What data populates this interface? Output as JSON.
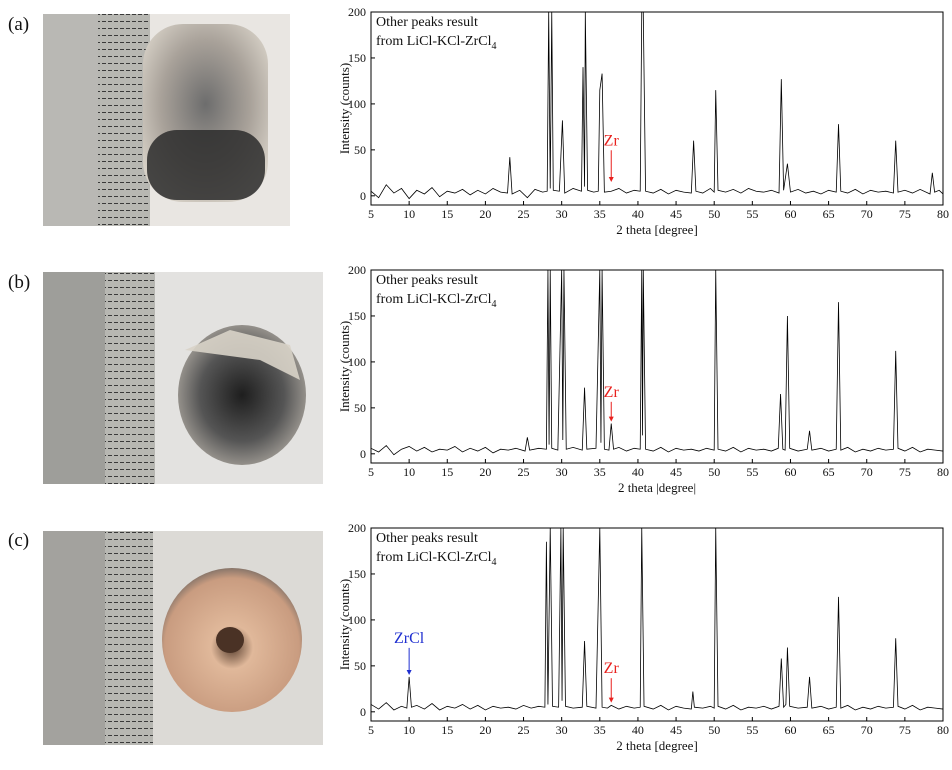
{
  "chart_data": [
    {
      "type": "line",
      "panel_label": "(a)",
      "x_label": "2 theta [degree]",
      "y_label": "Intensity (counts)",
      "note": [
        {
          "text": "Other peaks result"
        },
        {
          "text": "from LiCl-KCl-ZrCl",
          "subscript": "4"
        }
      ],
      "xlim": [
        5,
        80
      ],
      "xticks": [
        5,
        10,
        15,
        20,
        25,
        30,
        35,
        40,
        45,
        50,
        55,
        60,
        65,
        70,
        75,
        80
      ],
      "ylim": [
        -10,
        200
      ],
      "yticks": [
        0,
        50,
        100,
        150,
        200
      ],
      "series": [
        {
          "color": "#000000",
          "x": [
            5,
            6,
            7,
            8,
            9,
            10,
            11,
            12,
            13,
            14,
            15,
            16,
            17,
            18,
            19,
            20,
            21,
            22,
            22.9,
            23.2,
            23.5,
            24.5,
            25.5,
            26.5,
            27.5,
            28.1,
            28.3,
            28.5,
            28.7,
            28.9,
            29.7,
            30.1,
            30.4,
            31.5,
            32.6,
            32.8,
            33.0,
            33.1,
            33.4,
            34.2,
            34.8,
            35.0,
            35.3,
            35.6,
            36.5,
            37.5,
            38.5,
            39.5,
            40.3,
            40.5,
            40.7,
            41.0,
            42,
            43,
            44,
            45,
            46,
            47.0,
            47.3,
            47.6,
            48.5,
            49.5,
            50.0,
            50.2,
            50.5,
            51.5,
            52.5,
            53.5,
            54.5,
            55.5,
            56.5,
            57.5,
            58.5,
            58.8,
            59.1,
            59.6,
            60.0,
            61,
            62,
            63,
            64,
            65,
            66.0,
            66.3,
            66.6,
            67.5,
            68.5,
            69.5,
            70.5,
            71.5,
            72.5,
            73.5,
            73.8,
            74.1,
            75,
            76,
            77,
            78.3,
            78.6,
            78.9,
            79.5,
            80
          ],
          "values": [
            5,
            -2,
            12,
            3,
            8,
            -3,
            6,
            2,
            9,
            -1,
            5,
            3,
            7,
            1,
            6,
            2,
            8,
            4,
            3,
            42,
            2,
            6,
            -2,
            7,
            4,
            5,
            200,
            8,
            200,
            6,
            5,
            82,
            3,
            8,
            5,
            140,
            10,
            200,
            6,
            4,
            5,
            115,
            133,
            4,
            5,
            8,
            3,
            6,
            5,
            200,
            200,
            5,
            3,
            7,
            2,
            6,
            4,
            3,
            60,
            5,
            3,
            8,
            4,
            115,
            6,
            4,
            7,
            3,
            8,
            5,
            4,
            6,
            3,
            127,
            6,
            35,
            4,
            7,
            3,
            5,
            2,
            6,
            4,
            78,
            5,
            3,
            7,
            2,
            6,
            4,
            5,
            3,
            60,
            4,
            6,
            3,
            7,
            2,
            25,
            4,
            6,
            2
          ]
        }
      ],
      "annotations": [
        {
          "text": "Zr",
          "x": 36.5,
          "y": 55,
          "arrow_to": 15,
          "color": "#e8201d"
        }
      ]
    },
    {
      "type": "line",
      "panel_label": "(b)",
      "x_label": "2 theta |degree|",
      "y_label": "Intensity (counts)",
      "note": [
        {
          "text": "Other peaks result"
        },
        {
          "text": "from LiCl-KCl-ZrCl",
          "subscript": "4"
        }
      ],
      "xlim": [
        5,
        80
      ],
      "xticks": [
        5,
        10,
        15,
        20,
        25,
        30,
        35,
        40,
        45,
        50,
        55,
        60,
        65,
        70,
        75,
        80
      ],
      "ylim": [
        -10,
        200
      ],
      "yticks": [
        0,
        50,
        100,
        150,
        200
      ],
      "series": [
        {
          "color": "#000000",
          "x": [
            5,
            6,
            7,
            8,
            9,
            10,
            11,
            12,
            13,
            14,
            15,
            16,
            17,
            18,
            19,
            20,
            21,
            22,
            23,
            24,
            25.2,
            25.5,
            25.8,
            27,
            28.0,
            28.2,
            28.35,
            28.5,
            28.7,
            29.5,
            30.0,
            30.15,
            30.3,
            30.6,
            31.5,
            32.7,
            33.0,
            33.3,
            34.5,
            35.0,
            35.15,
            35.3,
            35.6,
            36.2,
            36.5,
            36.8,
            37.5,
            38.5,
            39.5,
            40.3,
            40.5,
            40.6,
            40.7,
            41.0,
            42,
            43,
            44,
            45,
            46,
            47,
            48,
            49,
            50.0,
            50.2,
            50.5,
            51.5,
            52.5,
            53.5,
            54.5,
            55.5,
            56.5,
            57.5,
            58.4,
            58.7,
            59.0,
            59.3,
            59.6,
            59.9,
            61,
            62.2,
            62.5,
            62.8,
            64,
            65,
            66.0,
            66.3,
            66.6,
            67.5,
            68.5,
            69.5,
            70.5,
            71.5,
            72.5,
            73.5,
            73.8,
            74.1,
            75,
            76,
            77,
            78,
            79,
            80
          ],
          "values": [
            6,
            2,
            9,
            -1,
            5,
            8,
            3,
            7,
            2,
            5,
            4,
            8,
            2,
            6,
            3,
            7,
            1,
            5,
            4,
            6,
            3,
            18,
            4,
            6,
            5,
            200,
            10,
            200,
            6,
            4,
            200,
            15,
            200,
            5,
            7,
            4,
            72,
            5,
            6,
            200,
            12,
            200,
            5,
            4,
            33,
            5,
            7,
            3,
            6,
            5,
            200,
            20,
            200,
            5,
            3,
            7,
            2,
            6,
            4,
            5,
            3,
            6,
            4,
            200,
            5,
            3,
            7,
            2,
            6,
            4,
            5,
            3,
            6,
            65,
            5,
            4,
            150,
            6,
            3,
            5,
            25,
            4,
            6,
            3,
            5,
            165,
            4,
            7,
            2,
            5,
            3,
            6,
            4,
            5,
            112,
            6,
            3,
            7,
            2,
            5,
            4,
            3
          ]
        }
      ],
      "annotations": [
        {
          "text": "Zr",
          "x": 36.5,
          "y": 62,
          "arrow_to": 35,
          "color": "#e8201d"
        }
      ]
    },
    {
      "type": "line",
      "panel_label": "(c)",
      "x_label": "2 theta [degree]",
      "y_label": "Intensity (counts)",
      "note": [
        {
          "text": "Other peaks result"
        },
        {
          "text": "from LiCl-KCl-ZrCl",
          "subscript": "4"
        }
      ],
      "xlim": [
        5,
        80
      ],
      "xticks": [
        5,
        10,
        15,
        20,
        25,
        30,
        35,
        40,
        45,
        50,
        55,
        60,
        65,
        70,
        75,
        80
      ],
      "ylim": [
        -10,
        200
      ],
      "yticks": [
        0,
        50,
        100,
        150,
        200
      ],
      "series": [
        {
          "color": "#000000",
          "x": [
            5,
            6,
            7,
            8,
            9,
            9.7,
            10.0,
            10.3,
            11,
            12,
            13,
            14,
            15,
            16,
            17,
            18,
            19,
            20,
            21,
            22,
            23,
            24,
            25,
            26,
            27,
            27.8,
            28.0,
            28.2,
            28.5,
            28.8,
            29.6,
            29.9,
            30.05,
            30.2,
            30.5,
            31.5,
            32.7,
            33.0,
            33.3,
            34.5,
            35.0,
            35.3,
            36,
            36.5,
            37.5,
            38.5,
            39.5,
            40.3,
            40.5,
            40.8,
            42,
            43,
            44,
            45,
            46,
            47.0,
            47.2,
            47.4,
            48.5,
            49.5,
            50.0,
            50.2,
            50.5,
            51.5,
            52.5,
            53.5,
            54.5,
            55.5,
            56.5,
            57.5,
            58.5,
            58.8,
            59.1,
            59.4,
            59.6,
            59.9,
            61,
            62.2,
            62.5,
            62.8,
            64,
            65,
            66.0,
            66.3,
            66.6,
            67.5,
            68.5,
            69.5,
            70.5,
            71.5,
            72.5,
            73.5,
            73.8,
            74.1,
            75,
            76,
            77,
            78,
            79,
            80
          ],
          "values": [
            8,
            3,
            10,
            2,
            6,
            4,
            38,
            5,
            7,
            3,
            9,
            2,
            6,
            4,
            8,
            3,
            7,
            2,
            6,
            4,
            5,
            3,
            7,
            4,
            6,
            5,
            185,
            8,
            200,
            6,
            5,
            200,
            12,
            200,
            6,
            4,
            5,
            77,
            6,
            4,
            200,
            5,
            4,
            7,
            3,
            6,
            4,
            5,
            200,
            6,
            3,
            7,
            2,
            6,
            4,
            3,
            22,
            5,
            4,
            6,
            4,
            200,
            6,
            3,
            7,
            2,
            5,
            4,
            6,
            3,
            6,
            58,
            5,
            8,
            70,
            6,
            4,
            5,
            38,
            4,
            6,
            3,
            5,
            125,
            4,
            7,
            2,
            5,
            3,
            6,
            4,
            5,
            80,
            6,
            3,
            7,
            2,
            5,
            4,
            3
          ]
        }
      ],
      "annotations": [
        {
          "text": "ZrCl",
          "x": 10,
          "y": 75,
          "arrow_to": 40,
          "color": "#1f2fd0"
        },
        {
          "text": "Zr",
          "x": 36.5,
          "y": 42,
          "arrow_to": 10,
          "color": "#e8201d"
        }
      ]
    }
  ]
}
